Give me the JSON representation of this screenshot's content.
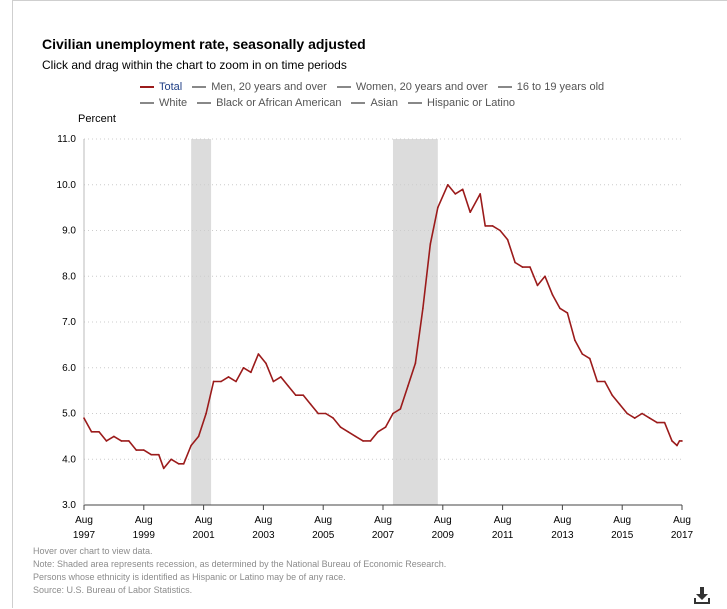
{
  "header": {
    "title": "Civilian unemployment rate, seasonally adjusted",
    "subtitle": "Click and drag within the chart to zoom in on time periods"
  },
  "legend": {
    "row1": [
      {
        "label": "Total",
        "active": true
      },
      {
        "label": "Men, 20 years and over",
        "active": false
      },
      {
        "label": "Women, 20 years and over",
        "active": false
      },
      {
        "label": "16 to 19 years old",
        "active": false
      }
    ],
    "row2": [
      {
        "label": "White",
        "active": false
      },
      {
        "label": "Black or African American",
        "active": false
      },
      {
        "label": "Asian",
        "active": false
      },
      {
        "label": "Hispanic or Latino",
        "active": false
      }
    ]
  },
  "notes": [
    "Hover over chart to view data.",
    "Note: Shaded area represents recession, as determined by the National Bureau of Economic Research.",
    "Persons whose ethnicity is identified as Hispanic or Latino may be of any race.",
    "Source: U.S. Bureau of Labor Statistics."
  ],
  "icons": {
    "download": "download-icon"
  },
  "colors": {
    "series": "#9b1b1b",
    "recession": "#dcdcdc",
    "legend_active_text": "#1f3f86",
    "grid": "#cccccc"
  },
  "chart_data": {
    "type": "line",
    "title": "Civilian unemployment rate, seasonally adjusted",
    "ylabel": "Percent",
    "ylim": [
      3.0,
      11.0
    ],
    "yticks": [
      "3.0",
      "4.0",
      "5.0",
      "6.0",
      "7.0",
      "8.0",
      "9.0",
      "10.0",
      "11.0"
    ],
    "xlim": [
      "1997-08",
      "2017-08"
    ],
    "xticks": [
      {
        "month": "Aug",
        "year": "1997",
        "date": "1997-08"
      },
      {
        "month": "Aug",
        "year": "1999",
        "date": "1999-08"
      },
      {
        "month": "Aug",
        "year": "2001",
        "date": "2001-08"
      },
      {
        "month": "Aug",
        "year": "2003",
        "date": "2003-08"
      },
      {
        "month": "Aug",
        "year": "2005",
        "date": "2005-08"
      },
      {
        "month": "Aug",
        "year": "2007",
        "date": "2007-08"
      },
      {
        "month": "Aug",
        "year": "2009",
        "date": "2009-08"
      },
      {
        "month": "Aug",
        "year": "2011",
        "date": "2011-08"
      },
      {
        "month": "Aug",
        "year": "2013",
        "date": "2013-08"
      },
      {
        "month": "Aug",
        "year": "2015",
        "date": "2015-08"
      },
      {
        "month": "Aug",
        "year": "2017",
        "date": "2017-08"
      }
    ],
    "grid": true,
    "recessions": [
      {
        "start": "2001-03",
        "end": "2001-11"
      },
      {
        "start": "2007-12",
        "end": "2009-06"
      }
    ],
    "series": [
      {
        "name": "Total",
        "color": "#9b1b1b",
        "points": [
          [
            "1997-08",
            4.9
          ],
          [
            "1997-11",
            4.6
          ],
          [
            "1998-02",
            4.6
          ],
          [
            "1998-05",
            4.4
          ],
          [
            "1998-08",
            4.5
          ],
          [
            "1998-11",
            4.4
          ],
          [
            "1999-02",
            4.4
          ],
          [
            "1999-05",
            4.2
          ],
          [
            "1999-08",
            4.2
          ],
          [
            "1999-11",
            4.1
          ],
          [
            "2000-02",
            4.1
          ],
          [
            "2000-04",
            3.8
          ],
          [
            "2000-07",
            4.0
          ],
          [
            "2000-10",
            3.9
          ],
          [
            "2000-12",
            3.9
          ],
          [
            "2001-03",
            4.3
          ],
          [
            "2001-06",
            4.5
          ],
          [
            "2001-09",
            5.0
          ],
          [
            "2001-12",
            5.7
          ],
          [
            "2002-03",
            5.7
          ],
          [
            "2002-06",
            5.8
          ],
          [
            "2002-09",
            5.7
          ],
          [
            "2002-12",
            6.0
          ],
          [
            "2003-03",
            5.9
          ],
          [
            "2003-06",
            6.3
          ],
          [
            "2003-09",
            6.1
          ],
          [
            "2003-12",
            5.7
          ],
          [
            "2004-03",
            5.8
          ],
          [
            "2004-06",
            5.6
          ],
          [
            "2004-09",
            5.4
          ],
          [
            "2004-12",
            5.4
          ],
          [
            "2005-03",
            5.2
          ],
          [
            "2005-06",
            5.0
          ],
          [
            "2005-09",
            5.0
          ],
          [
            "2005-12",
            4.9
          ],
          [
            "2006-03",
            4.7
          ],
          [
            "2006-06",
            4.6
          ],
          [
            "2006-09",
            4.5
          ],
          [
            "2006-12",
            4.4
          ],
          [
            "2007-03",
            4.4
          ],
          [
            "2007-06",
            4.6
          ],
          [
            "2007-09",
            4.7
          ],
          [
            "2007-12",
            5.0
          ],
          [
            "2008-03",
            5.1
          ],
          [
            "2008-06",
            5.6
          ],
          [
            "2008-09",
            6.1
          ],
          [
            "2008-12",
            7.3
          ],
          [
            "2009-03",
            8.7
          ],
          [
            "2009-06",
            9.5
          ],
          [
            "2009-10",
            10.0
          ],
          [
            "2010-01",
            9.8
          ],
          [
            "2010-04",
            9.9
          ],
          [
            "2010-07",
            9.4
          ],
          [
            "2010-11",
            9.8
          ],
          [
            "2011-01",
            9.1
          ],
          [
            "2011-04",
            9.1
          ],
          [
            "2011-07",
            9.0
          ],
          [
            "2011-10",
            8.8
          ],
          [
            "2012-01",
            8.3
          ],
          [
            "2012-04",
            8.2
          ],
          [
            "2012-07",
            8.2
          ],
          [
            "2012-10",
            7.8
          ],
          [
            "2013-01",
            8.0
          ],
          [
            "2013-04",
            7.6
          ],
          [
            "2013-07",
            7.3
          ],
          [
            "2013-10",
            7.2
          ],
          [
            "2014-01",
            6.6
          ],
          [
            "2014-04",
            6.3
          ],
          [
            "2014-07",
            6.2
          ],
          [
            "2014-10",
            5.7
          ],
          [
            "2015-01",
            5.7
          ],
          [
            "2015-04",
            5.4
          ],
          [
            "2015-07",
            5.2
          ],
          [
            "2015-10",
            5.0
          ],
          [
            "2016-01",
            4.9
          ],
          [
            "2016-04",
            5.0
          ],
          [
            "2016-07",
            4.9
          ],
          [
            "2016-10",
            4.8
          ],
          [
            "2017-01",
            4.8
          ],
          [
            "2017-04",
            4.4
          ],
          [
            "2017-06",
            4.3
          ],
          [
            "2017-07",
            4.4
          ],
          [
            "2017-08",
            4.4
          ]
        ]
      }
    ]
  }
}
